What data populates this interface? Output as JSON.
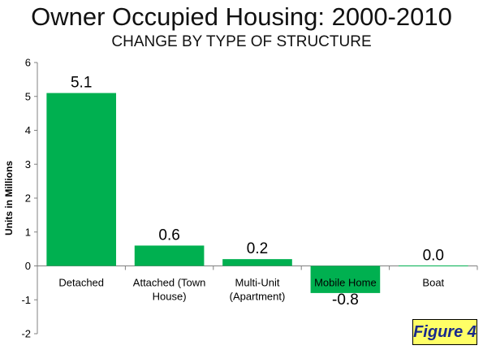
{
  "title": "Owner Occupied Housing: 2000-2010",
  "subtitle": "CHANGE BY TYPE OF STRUCTURE",
  "figure_label": "Figure 4",
  "colors": {
    "bar": "#00b050",
    "axis": "#808080",
    "text": "#000000",
    "badge_bg": "#ffff66",
    "badge_text": "#1a2a8a"
  },
  "chart_data": {
    "type": "bar",
    "title": "Owner Occupied Housing: 2000-2010",
    "subtitle": "CHANGE BY TYPE OF STRUCTURE",
    "xlabel": "",
    "ylabel": "Units in Millions",
    "ylim": [
      -2,
      6
    ],
    "yticks": [
      -2,
      -1,
      0,
      1,
      2,
      3,
      4,
      5,
      6
    ],
    "grid": false,
    "categories": [
      [
        "Detached"
      ],
      [
        "Attached (Town",
        "House)"
      ],
      [
        "Multi-Unit",
        "(Apartment)"
      ],
      [
        "Mobile Home"
      ],
      [
        "Boat"
      ]
    ],
    "values": [
      5.1,
      0.6,
      0.2,
      -0.8,
      0.0
    ],
    "data_labels": [
      "5.1",
      "0.6",
      "0.2",
      "-0.8",
      "0.0"
    ]
  }
}
